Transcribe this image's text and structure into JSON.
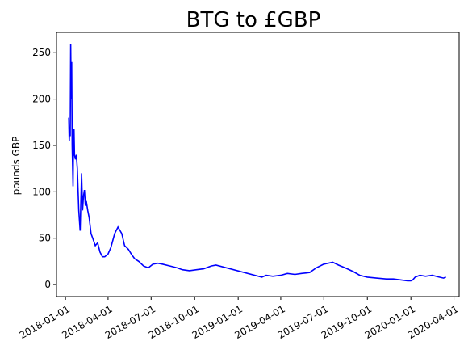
{
  "chart_data": {
    "type": "line",
    "title": "BTG to £GBP",
    "xlabel": "",
    "ylabel": "pounds GBP",
    "color": "#0000ff",
    "xlim": [
      "2017-12-13",
      "2020-04-12"
    ],
    "ylim": [
      -13,
      272
    ],
    "x_ticks": [
      "2018-01-01",
      "2018-04-01",
      "2018-07-01",
      "2018-10-01",
      "2019-01-01",
      "2019-04-01",
      "2019-07-01",
      "2019-10-01",
      "2020-01-01",
      "2020-04-01"
    ],
    "y_ticks": [
      0,
      50,
      100,
      150,
      200,
      250
    ],
    "grid": false,
    "series": [
      {
        "x": [
          "2018-01-08",
          "2018-01-09",
          "2018-01-10",
          "2018-01-11",
          "2018-01-12",
          "2018-01-13",
          "2018-01-14",
          "2018-01-15",
          "2018-01-16",
          "2018-01-17",
          "2018-01-18",
          "2018-01-19",
          "2018-01-20",
          "2018-01-22",
          "2018-01-24",
          "2018-01-26",
          "2018-01-29",
          "2018-02-01",
          "2018-02-04",
          "2018-02-06",
          "2018-02-08",
          "2018-02-10",
          "2018-02-12",
          "2018-02-14",
          "2018-02-17",
          "2018-02-20",
          "2018-02-24",
          "2018-03-01",
          "2018-03-05",
          "2018-03-10",
          "2018-03-15",
          "2018-03-20",
          "2018-03-25",
          "2018-04-01",
          "2018-04-07",
          "2018-04-15",
          "2018-04-22",
          "2018-04-30",
          "2018-05-06",
          "2018-05-10",
          "2018-05-14",
          "2018-05-20",
          "2018-05-27",
          "2018-06-05",
          "2018-06-15",
          "2018-06-25",
          "2018-07-05",
          "2018-07-15",
          "2018-07-25",
          "2018-08-10",
          "2018-08-25",
          "2018-09-05",
          "2018-09-20",
          "2018-10-05",
          "2018-10-20",
          "2018-11-05",
          "2018-11-15",
          "2019-02-20",
          "2019-03-01",
          "2019-03-15",
          "2019-04-01",
          "2019-04-15",
          "2019-05-01",
          "2019-05-15",
          "2019-06-01",
          "2019-06-15",
          "2019-07-01",
          "2019-07-10",
          "2019-07-20",
          "2019-08-01",
          "2019-08-15",
          "2019-09-01",
          "2019-09-15",
          "2019-10-01",
          "2019-10-20",
          "2019-11-10",
          "2019-11-25",
          "2019-12-10",
          "2019-12-25",
          "2020-01-01",
          "2020-01-05",
          "2020-01-10",
          "2020-01-20",
          "2020-02-01",
          "2020-02-15",
          "2020-03-01",
          "2020-03-10",
          "2020-03-15"
        ],
        "y": [
          180,
          155,
          170,
          160,
          259,
          200,
          240,
          150,
          130,
          106,
          165,
          168,
          140,
          135,
          140,
          125,
          80,
          58,
          120,
          80,
          95,
          102,
          85,
          90,
          80,
          72,
          55,
          48,
          42,
          45,
          35,
          30,
          30,
          33,
          40,
          55,
          62,
          55,
          42,
          40,
          38,
          33,
          28,
          25,
          20,
          18,
          22,
          23,
          22,
          20,
          18,
          16,
          15,
          16,
          17,
          20,
          21,
          8,
          10,
          9,
          10,
          12,
          11,
          12,
          13,
          18,
          22,
          23,
          24,
          21,
          18,
          14,
          10,
          8,
          7,
          6,
          6,
          5,
          4,
          4,
          5,
          8,
          10,
          9,
          10,
          8,
          7,
          8
        ]
      }
    ]
  }
}
